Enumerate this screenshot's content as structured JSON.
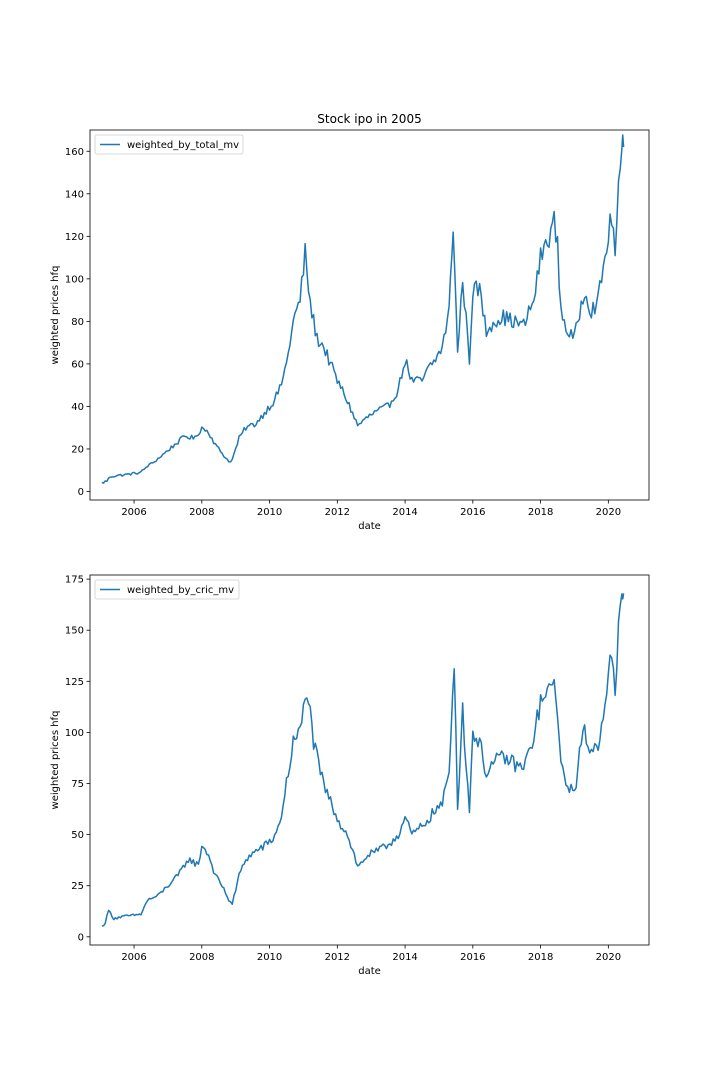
{
  "chart_data": [
    {
      "type": "line",
      "title": "Stock ipo in 2005",
      "xlabel": "date",
      "ylabel": "weighted prices hfq",
      "xlim": [
        2004.7,
        2021.2
      ],
      "ylim": [
        -4,
        170
      ],
      "xticks": [
        2006,
        2008,
        2010,
        2012,
        2014,
        2016,
        2018,
        2020
      ],
      "xtick_labels": [
        "2006",
        "2008",
        "2010",
        "2012",
        "2014",
        "2016",
        "2018",
        "2020"
      ],
      "yticks": [
        0,
        20,
        40,
        60,
        80,
        100,
        120,
        140,
        160
      ],
      "ytick_labels": [
        "0",
        "20",
        "40",
        "60",
        "80",
        "100",
        "120",
        "140",
        "160"
      ],
      "legend": "upper-left",
      "color": "#1f77b4",
      "series": [
        {
          "name": "weighted_by_total_mv",
          "x": [
            2005.05,
            2005.2,
            2005.3,
            2005.5,
            2005.8,
            2006.2,
            2006.4,
            2006.6,
            2006.9,
            2007.2,
            2007.5,
            2007.8,
            2008.0,
            2008.2,
            2008.4,
            2008.6,
            2008.8,
            2008.9,
            2009.1,
            2009.3,
            2009.6,
            2009.9,
            2010.1,
            2010.3,
            2010.5,
            2010.7,
            2010.9,
            2011.05,
            2011.2,
            2011.4,
            2011.6,
            2011.8,
            2012.0,
            2012.2,
            2012.5,
            2012.6,
            2012.9,
            2013.2,
            2013.5,
            2013.8,
            2014.0,
            2014.2,
            2014.5,
            2014.7,
            2014.9,
            2015.1,
            2015.3,
            2015.42,
            2015.55,
            2015.7,
            2015.9,
            2016.0,
            2016.2,
            2016.4,
            2016.6,
            2016.9,
            2017.2,
            2017.5,
            2017.8,
            2018.0,
            2018.2,
            2018.4,
            2018.5,
            2018.6,
            2018.8,
            2019.0,
            2019.2,
            2019.3,
            2019.5,
            2019.7,
            2019.9,
            2020.1,
            2020.2,
            2020.3,
            2020.4,
            2020.45
          ],
          "values": [
            4,
            5,
            7,
            7.5,
            8,
            9,
            12,
            14,
            18,
            22,
            26,
            25,
            30,
            28,
            22,
            18,
            14,
            15,
            25,
            30,
            32,
            38,
            42,
            48,
            60,
            80,
            90,
            112,
            88,
            72,
            68,
            60,
            52,
            46,
            35,
            31,
            35,
            38,
            40,
            48,
            62,
            52,
            52,
            58,
            62,
            68,
            85,
            126,
            65,
            100,
            62,
            95,
            95,
            75,
            80,
            82,
            80,
            78,
            90,
            110,
            118,
            127,
            115,
            85,
            75,
            72,
            88,
            95,
            85,
            90,
            110,
            130,
            112,
            140,
            160,
            162
          ]
        }
      ]
    },
    {
      "type": "line",
      "title": "",
      "xlabel": "date",
      "ylabel": "weighted prices hfq",
      "xlim": [
        2004.7,
        2021.2
      ],
      "ylim": [
        -4,
        177
      ],
      "xticks": [
        2006,
        2008,
        2010,
        2012,
        2014,
        2016,
        2018,
        2020
      ],
      "xtick_labels": [
        "2006",
        "2008",
        "2010",
        "2012",
        "2014",
        "2016",
        "2018",
        "2020"
      ],
      "yticks": [
        0,
        25,
        50,
        75,
        100,
        125,
        150,
        175
      ],
      "ytick_labels": [
        "0",
        "25",
        "50",
        "75",
        "100",
        "125",
        "150",
        "175"
      ],
      "legend": "upper-left",
      "color": "#1f77b4",
      "series": [
        {
          "name": "weighted_by_cric_mv",
          "x": [
            2005.05,
            2005.15,
            2005.25,
            2005.4,
            2005.7,
            2006.2,
            2006.4,
            2006.7,
            2007.0,
            2007.3,
            2007.6,
            2007.9,
            2008.0,
            2008.2,
            2008.4,
            2008.6,
            2008.8,
            2008.9,
            2009.1,
            2009.3,
            2009.6,
            2009.9,
            2010.1,
            2010.3,
            2010.5,
            2010.7,
            2010.9,
            2011.1,
            2011.3,
            2011.5,
            2011.7,
            2011.9,
            2012.1,
            2012.3,
            2012.5,
            2012.6,
            2012.9,
            2013.2,
            2013.5,
            2013.8,
            2014.0,
            2014.2,
            2014.5,
            2014.7,
            2014.9,
            2015.1,
            2015.3,
            2015.45,
            2015.55,
            2015.7,
            2015.9,
            2016.0,
            2016.2,
            2016.4,
            2016.6,
            2016.9,
            2017.2,
            2017.5,
            2017.8,
            2018.0,
            2018.2,
            2018.4,
            2018.5,
            2018.6,
            2018.8,
            2019.0,
            2019.2,
            2019.3,
            2019.5,
            2019.7,
            2019.9,
            2020.1,
            2020.2,
            2020.3,
            2020.4,
            2020.45
          ],
          "values": [
            5,
            7,
            13,
            9,
            10,
            11,
            18,
            20,
            25,
            30,
            38,
            35,
            45,
            40,
            30,
            25,
            18,
            16,
            30,
            38,
            42,
            45,
            48,
            55,
            75,
            95,
            100,
            122,
            95,
            80,
            70,
            62,
            55,
            50,
            40,
            34,
            40,
            42,
            45,
            50,
            58,
            50,
            54,
            58,
            62,
            65,
            80,
            136,
            65,
            110,
            62,
            100,
            95,
            80,
            85,
            88,
            85,
            82,
            98,
            115,
            118,
            125,
            112,
            82,
            75,
            70,
            95,
            100,
            90,
            95,
            115,
            140,
            115,
            150,
            165,
            168
          ]
        }
      ]
    }
  ]
}
